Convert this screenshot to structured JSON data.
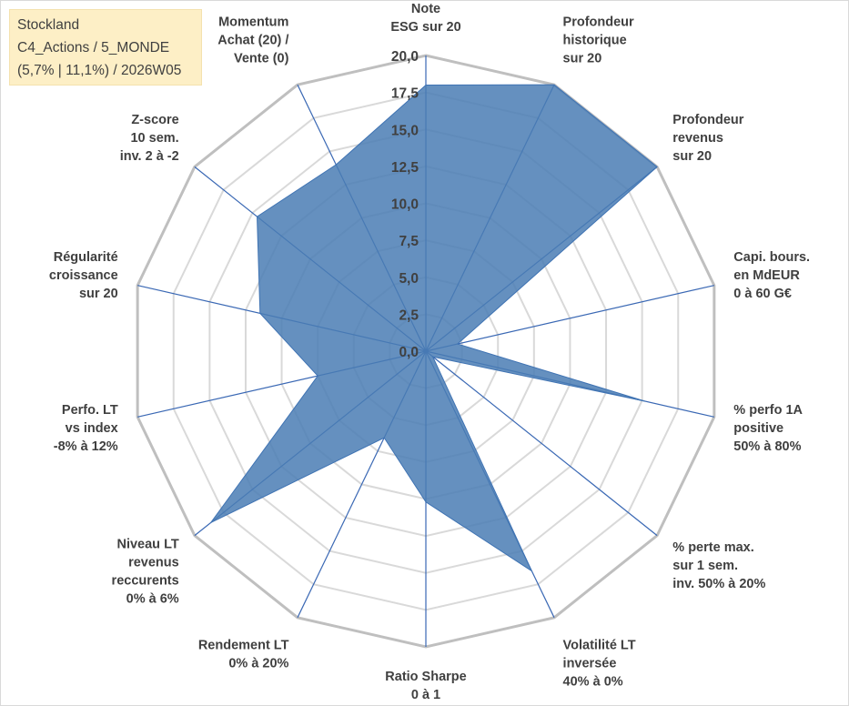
{
  "info_box": {
    "line1": "Stockland",
    "line2": "C4_Actions / 5_MONDE",
    "line3": "(5,7% | 11,1%) / 2026W05"
  },
  "colors": {
    "series_fill": "#4a7cb4",
    "series_stroke": "#3f73b3",
    "axis_line": "#3a68b4",
    "grid_outer": "#bfbfbf",
    "grid_inner": "#d9d9d9",
    "info_bg": "#fdefc6",
    "text": "#404040"
  },
  "chart_data": {
    "type": "radar",
    "range": [
      0,
      20
    ],
    "grid": true,
    "tick_labels": [
      "0,0",
      "2,5",
      "5,0",
      "7,5",
      "10,0",
      "12,5",
      "15,0",
      "17,5",
      "20,0"
    ],
    "axes": [
      {
        "lines": [
          "Note",
          "ESG sur 20"
        ],
        "value": 18
      },
      {
        "lines": [
          "Profondeur",
          "historique",
          "sur 20"
        ],
        "value": 20
      },
      {
        "lines": [
          "Profondeur",
          "revenus",
          "sur 20"
        ],
        "value": 20
      },
      {
        "lines": [
          "Capi. bours.",
          "en MdEUR",
          "0 à 60 G€"
        ],
        "value": 2.2
      },
      {
        "lines": [
          "% perfo 1A",
          "positive",
          "50% à 80%"
        ],
        "value": 15.2
      },
      {
        "lines": [
          "% perte max.",
          "sur 1 sem.",
          "inv. 50% à 20%"
        ],
        "value": 0.6
      },
      {
        "lines": [
          "Volatilité LT",
          "inversée",
          "40% à 0%"
        ],
        "value": 16.5
      },
      {
        "lines": [
          "Ratio Sharpe",
          "0 à 1"
        ],
        "value": 10.2
      },
      {
        "lines": [
          "Rendement LT",
          "0% à 20%"
        ],
        "value": 6.5
      },
      {
        "lines": [
          "Niveau LT",
          "revenus",
          "reccurents",
          "0% à 6%"
        ],
        "value": 18.6
      },
      {
        "lines": [
          "Perfo. LT",
          "vs index",
          "-8% à 12%"
        ],
        "value": 7.5
      },
      {
        "lines": [
          "Régularité",
          "croissance",
          "sur 20"
        ],
        "value": 11.5
      },
      {
        "lines": [
          "Z-score",
          "10 sem.",
          "inv. 2 à -2"
        ],
        "value": 14.6
      },
      {
        "lines": [
          "Momentum",
          "Achat (20) /",
          "Vente (0)"
        ],
        "value": 14
      }
    ]
  }
}
